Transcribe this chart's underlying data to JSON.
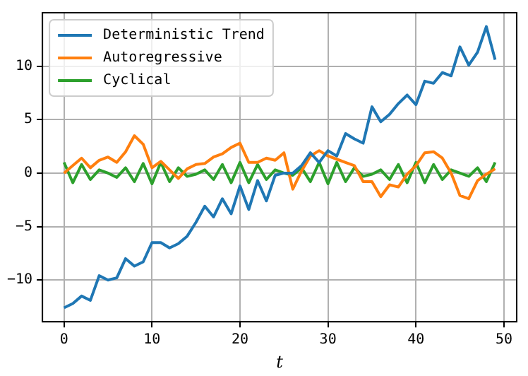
{
  "chart_data": {
    "type": "line",
    "xlabel": "t",
    "x": [
      0,
      1,
      2,
      3,
      4,
      5,
      6,
      7,
      8,
      9,
      10,
      11,
      12,
      13,
      14,
      15,
      16,
      17,
      18,
      19,
      20,
      21,
      22,
      23,
      24,
      25,
      26,
      27,
      28,
      29,
      30,
      31,
      32,
      33,
      34,
      35,
      36,
      37,
      38,
      39,
      40,
      41,
      42,
      43,
      44,
      45,
      46,
      47,
      48,
      49
    ],
    "series": [
      {
        "name": "Deterministic Trend",
        "color": "#1f77b4",
        "values": [
          -12.6,
          -12.2,
          -11.5,
          -11.9,
          -9.6,
          -10.0,
          -9.8,
          -8.0,
          -8.7,
          -8.3,
          -6.5,
          -6.5,
          -7.0,
          -6.6,
          -5.9,
          -4.6,
          -3.1,
          -4.1,
          -2.4,
          -3.8,
          -1.2,
          -3.4,
          -0.7,
          -2.6,
          -0.2,
          0.0,
          0.0,
          0.7,
          1.9,
          1.0,
          2.1,
          1.6,
          3.7,
          3.2,
          2.8,
          6.2,
          4.8,
          5.5,
          6.5,
          7.3,
          6.4,
          8.6,
          8.4,
          9.4,
          9.1,
          11.8,
          10.1,
          11.3,
          13.7,
          10.6
        ]
      },
      {
        "name": "Autoregressive",
        "color": "#ff7f0e",
        "values": [
          0.0,
          0.7,
          1.4,
          0.5,
          1.2,
          1.5,
          1.0,
          2.0,
          3.5,
          2.7,
          0.5,
          1.1,
          0.3,
          -0.5,
          0.4,
          0.8,
          0.9,
          1.5,
          1.8,
          2.4,
          2.8,
          1.0,
          1.0,
          1.4,
          1.2,
          1.9,
          -1.5,
          0.2,
          1.6,
          2.1,
          1.6,
          1.3,
          1.0,
          0.7,
          -0.8,
          -0.8,
          -2.2,
          -1.1,
          -1.3,
          -0.1,
          0.7,
          1.9,
          2.0,
          1.4,
          0.0,
          -2.1,
          -2.4,
          -0.7,
          -0.1,
          0.4
        ]
      },
      {
        "name": "Cyclical",
        "color": "#2ca02c",
        "values": [
          1.0,
          -0.9,
          0.8,
          -0.6,
          0.3,
          0.0,
          -0.4,
          0.5,
          -0.8,
          0.9,
          -1.0,
          1.0,
          -0.8,
          0.5,
          -0.3,
          -0.1,
          0.3,
          -0.6,
          0.8,
          -0.9,
          1.0,
          -0.9,
          0.8,
          -0.6,
          0.3,
          0.0,
          -0.2,
          0.5,
          -0.8,
          1.0,
          -1.0,
          1.0,
          -0.8,
          0.5,
          -0.3,
          -0.1,
          0.3,
          -0.6,
          0.8,
          -0.9,
          1.0,
          -0.9,
          0.8,
          -0.6,
          0.3,
          0.0,
          -0.3,
          0.5,
          -0.8,
          1.0
        ]
      }
    ],
    "xlim": [
      -2.45,
      51.45
    ],
    "xticks": [
      0,
      10,
      20,
      30,
      40,
      50
    ],
    "ylim": [
      -13.9,
      15.0
    ],
    "yticks": [
      -10,
      -5,
      0,
      5,
      10
    ],
    "grid": true,
    "legend": "top left",
    "marker": "none",
    "line_style": "solid"
  }
}
